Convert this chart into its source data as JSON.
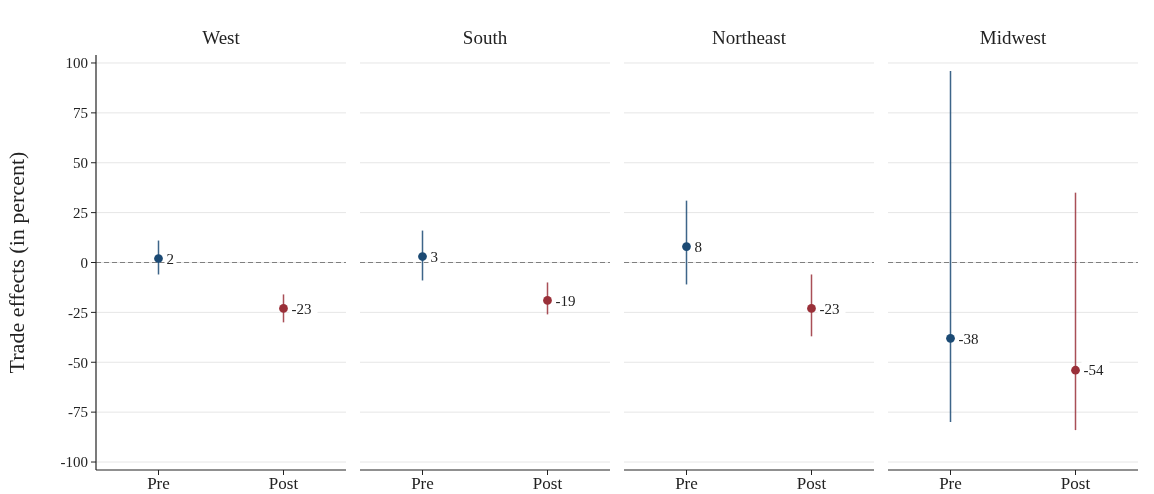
{
  "chart_data": [
    {
      "type": "scatter",
      "title": "West",
      "ylabel": "Trade effects (in percent)",
      "categories": [
        "Pre",
        "Post"
      ],
      "values": [
        2,
        -23
      ],
      "colors": [
        "#1b4a74",
        "#9a3039"
      ],
      "errors": [
        [
          -6,
          11
        ],
        [
          -30,
          -16
        ]
      ],
      "data_labels": true,
      "ylim": [
        -104,
        104
      ],
      "yticks": [
        -100,
        -75,
        -50,
        -25,
        0,
        25,
        50,
        75,
        100
      ],
      "grid": "y",
      "marker": "circle",
      "ref_lines": [
        {
          "axis": "y",
          "value": 0,
          "color": "#7f7f7f",
          "line_style": "dashed"
        }
      ]
    },
    {
      "type": "scatter",
      "title": "South",
      "categories": [
        "Pre",
        "Post"
      ],
      "values": [
        3,
        -19
      ],
      "colors": [
        "#1b4a74",
        "#9a3039"
      ],
      "errors": [
        [
          -9,
          16
        ],
        [
          -26,
          -10
        ]
      ],
      "data_labels": true,
      "ylim": [
        -104,
        100
      ],
      "yticks": [
        -100,
        -75,
        -50,
        -25,
        0,
        25,
        50,
        75,
        100
      ],
      "tick_labels": "x",
      "grid": "y",
      "marker": "circle",
      "ref_lines": [
        {
          "axis": "y",
          "value": 0,
          "color": "#7f7f7f",
          "line_style": "dashed"
        }
      ]
    },
    {
      "type": "scatter",
      "title": "Northeast",
      "categories": [
        "Pre",
        "Post"
      ],
      "values": [
        8,
        -23
      ],
      "colors": [
        "#1b4a74",
        "#9a3039"
      ],
      "errors": [
        [
          -11,
          31
        ],
        [
          -37,
          -6
        ]
      ],
      "data_labels": true,
      "ylim": [
        -104,
        100
      ],
      "yticks": [
        -100,
        -75,
        -50,
        -25,
        0,
        25,
        50,
        75,
        100
      ],
      "tick_labels": "x",
      "grid": "y",
      "marker": "circle",
      "ref_lines": [
        {
          "axis": "y",
          "value": 0,
          "color": "#7f7f7f",
          "line_style": "dashed"
        }
      ]
    },
    {
      "type": "scatter",
      "title": "Midwest",
      "categories": [
        "Pre",
        "Post"
      ],
      "values": [
        -38,
        -54
      ],
      "colors": [
        "#1b4a74",
        "#9a3039"
      ],
      "errors": [
        [
          -80,
          96
        ],
        [
          -84,
          35
        ]
      ],
      "data_labels": true,
      "ylim": [
        -104,
        100
      ],
      "yticks": [
        -100,
        -75,
        -50,
        -25,
        0,
        25,
        50,
        75,
        100
      ],
      "tick_labels": "x",
      "grid": "y",
      "marker": "circle",
      "ref_lines": [
        {
          "axis": "y",
          "value": 0,
          "color": "#7f7f7f",
          "line_style": "dashed"
        }
      ]
    }
  ]
}
